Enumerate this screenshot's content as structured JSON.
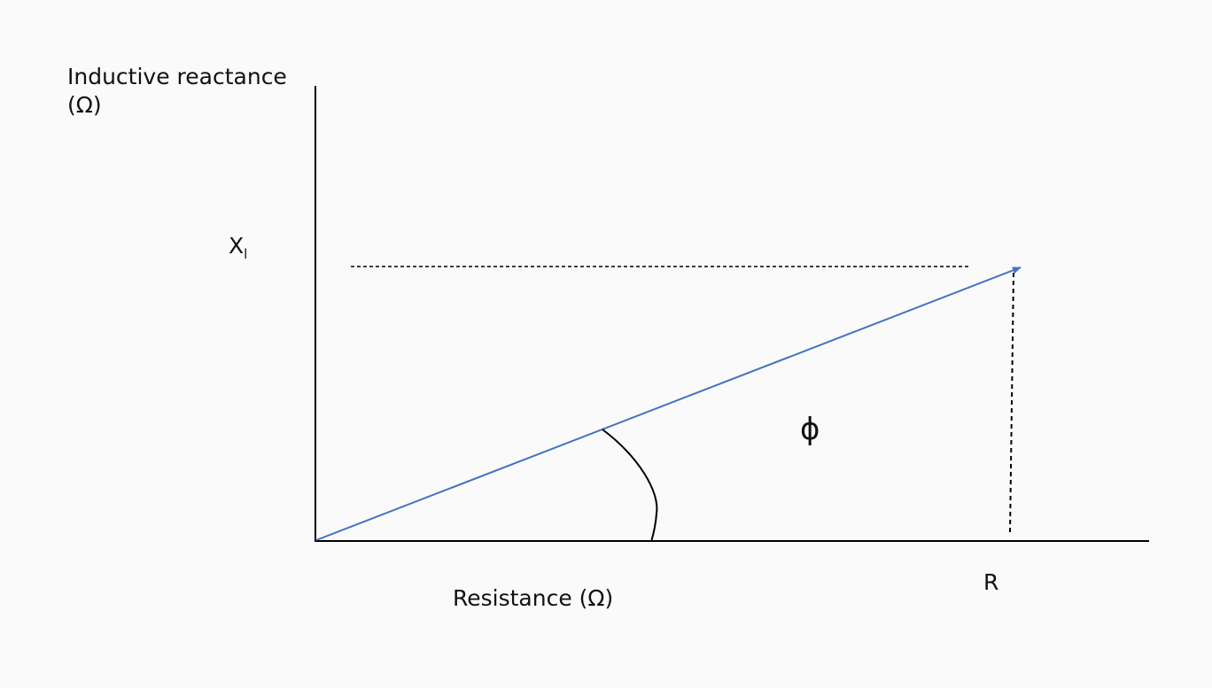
{
  "y_axis_label_line1": "Inductive reactance",
  "y_axis_label_line2": "(Ω)",
  "x_axis_label": "Resistance (Ω)",
  "xl_label": "X",
  "xl_subscript": "l",
  "r_label": "R",
  "angle_label": "ϕ",
  "colors": {
    "vector": "#4472c4",
    "axes": "#000000",
    "background": "#fafafa"
  }
}
